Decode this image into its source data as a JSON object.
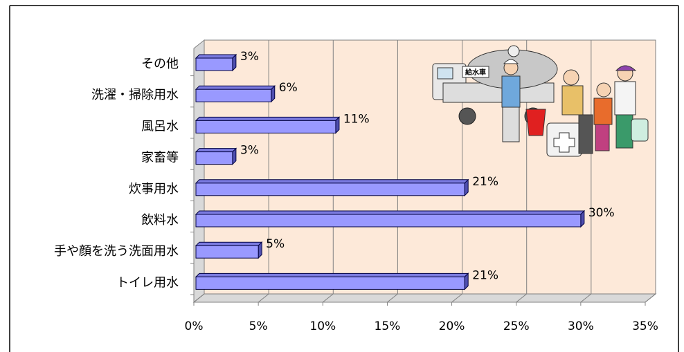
{
  "chart_data": {
    "type": "bar",
    "orientation": "horizontal",
    "three_d": true,
    "annotation": "給水車",
    "categories": [
      "その他",
      "洗濯・掃除用水",
      "風呂水",
      "家畜等",
      "炊事用水",
      "飲料水",
      "手や顔を洗う洗面用水",
      "トイレ用水"
    ],
    "values": [
      3,
      6,
      11,
      3,
      21,
      30,
      5,
      21
    ],
    "value_labels": [
      "3%",
      "6%",
      "11%",
      "3%",
      "21%",
      "30%",
      "5%",
      "21%"
    ],
    "color": "#9999ff",
    "xlim": [
      0,
      35
    ],
    "xticks": [
      {
        "value": 0,
        "label": "0%"
      },
      {
        "value": 5,
        "label": "5%"
      },
      {
        "value": 10,
        "label": "10%"
      },
      {
        "value": 15,
        "label": "15%"
      },
      {
        "value": 20,
        "label": "20%"
      },
      {
        "value": 25,
        "label": "25%"
      },
      {
        "value": 30,
        "label": "30%"
      },
      {
        "value": 35,
        "label": "35%"
      }
    ],
    "grid": true,
    "wall_color": "#fde9d9"
  }
}
